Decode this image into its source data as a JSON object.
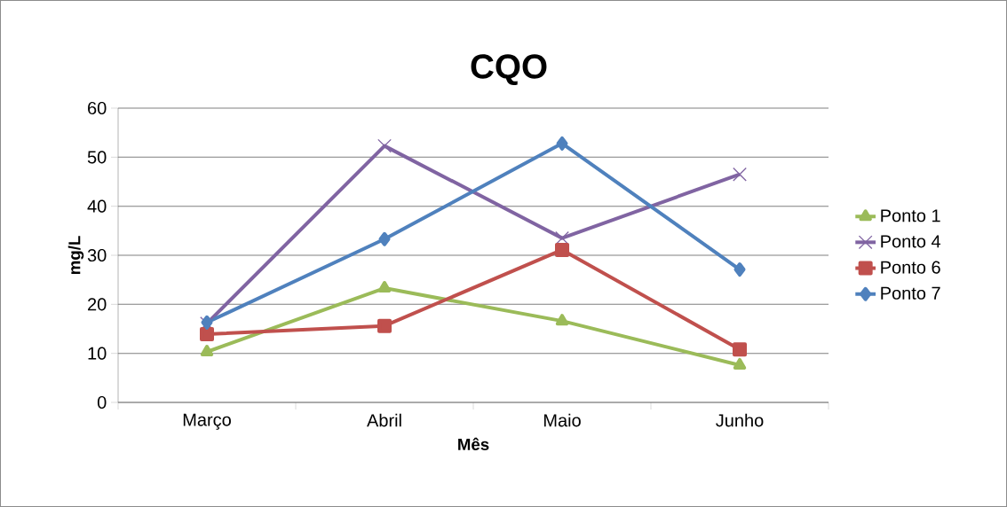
{
  "chart_data": {
    "type": "line",
    "title": "CQO",
    "xlabel": "Mês",
    "ylabel": "mg/L",
    "categories": [
      "Março",
      "Abril",
      "Maio",
      "Junho"
    ],
    "series": [
      {
        "name": "Ponto 1",
        "color": "#9bbb59",
        "marker": "triangle",
        "values": [
          10.3,
          23.3,
          16.6,
          7.6
        ]
      },
      {
        "name": "Ponto 4",
        "color": "#8064a2",
        "marker": "cross",
        "values": [
          16.1,
          52.3,
          33.5,
          46.5
        ]
      },
      {
        "name": "Ponto 6",
        "color": "#c0504d",
        "marker": "square",
        "values": [
          13.9,
          15.6,
          31.1,
          10.8
        ]
      },
      {
        "name": "Ponto 7",
        "color": "#4f81bd",
        "marker": "diamond",
        "values": [
          16.3,
          33.3,
          52.8,
          27.1
        ]
      }
    ],
    "ylim": [
      0,
      60
    ],
    "yticks": [
      0,
      10,
      20,
      30,
      40,
      50,
      60
    ],
    "grid": "y",
    "legend": "right",
    "line_style": "solid"
  }
}
